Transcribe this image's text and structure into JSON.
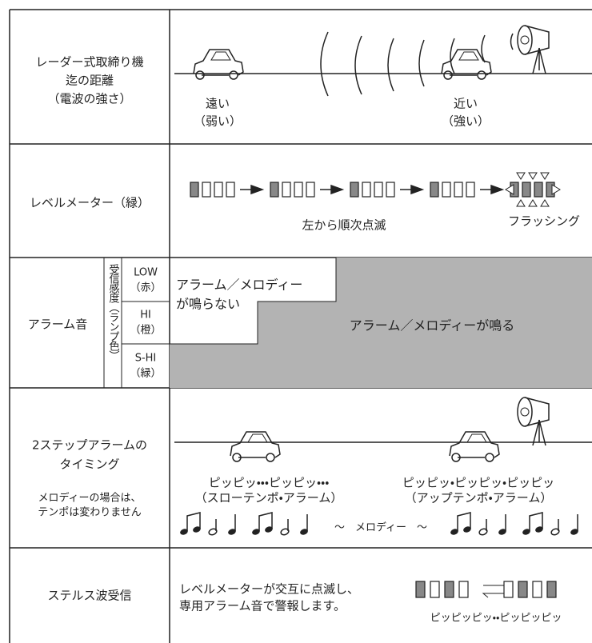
{
  "radar_row": {
    "label": [
      "レーダー式取締り機",
      "迄の距離",
      "（電波の強さ）"
    ],
    "far": [
      "遠い",
      "（弱い）"
    ],
    "near": [
      "近い",
      "（強い）"
    ]
  },
  "meter_row": {
    "label": "レベルメーター（緑）",
    "sequence": "左から順次点滅",
    "flashing": "フラッシング"
  },
  "alarm_row": {
    "label": "アラーム音",
    "sensitivity": "受信感度（ランプ色）",
    "levels": [
      {
        "name": "LOW",
        "color": "（赤）"
      },
      {
        "name": "HI",
        "color": "（橙）"
      },
      {
        "name": "S-HI",
        "color": "（緑）"
      }
    ],
    "silent": [
      "アラーム／メロディー",
      "が鳴らない"
    ],
    "sounds": "アラーム／メロディーが鳴る"
  },
  "two_step_row": {
    "label": [
      "2ステップアラームの",
      "タイミング"
    ],
    "note": [
      "メロディーの場合は、",
      "テンポは変わりません"
    ],
    "slow": [
      "ピッピッ・・・ピッピッ・・・",
      "（スローテンポ・アラーム）"
    ],
    "fast": [
      "ピッピッ・ピッピッ・ピッピッ",
      "（アップテンポ・アラーム）"
    ],
    "melody": "～　メロディー　～"
  },
  "stealth_row": {
    "label": "ステルス波受信",
    "description": [
      "レベルメーターが交互に点滅し、",
      "専用アラーム音で警報します。"
    ],
    "sound": "ピッピッピッ・・ピッピッピッ"
  }
}
